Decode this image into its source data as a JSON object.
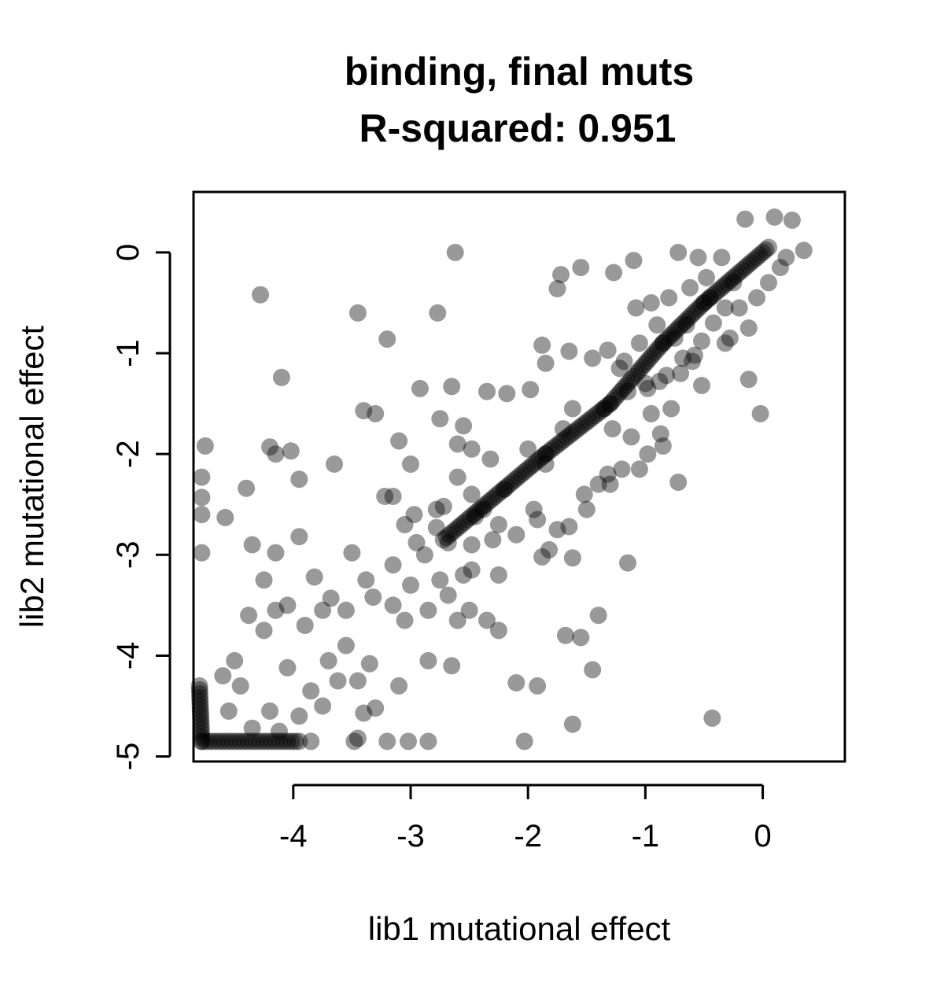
{
  "chart_data": {
    "type": "scatter",
    "title_lines": [
      "binding, final muts",
      "R-squared: 0.951"
    ],
    "xlabel": "lib1 mutational effect",
    "ylabel": "lib2 mutational effect",
    "xlim": [
      -4.85,
      0.7
    ],
    "ylim": [
      -5.05,
      0.6
    ],
    "x_ticks": [
      -4,
      -3,
      -2,
      -1,
      0
    ],
    "y_ticks": [
      -5,
      -4,
      -3,
      -2,
      -1,
      0
    ],
    "x_tick_labels": [
      "-4",
      "-3",
      "-2",
      "-1",
      "0"
    ],
    "y_tick_labels": [
      "-5",
      "-4",
      "-3",
      "-2",
      "-1",
      "0"
    ],
    "point_color": "#000000",
    "point_opacity": 0.4,
    "grid": false,
    "legend": "none",
    "points": [
      [
        -2.62,
        0.0
      ],
      [
        -4.28,
        -0.42
      ],
      [
        -4.1,
        -1.24
      ],
      [
        -3.2,
        -0.86
      ],
      [
        -3.45,
        -0.6
      ],
      [
        -2.77,
        -0.6
      ],
      [
        -4.75,
        -1.92
      ],
      [
        -4.78,
        -2.23
      ],
      [
        -4.78,
        -2.43
      ],
      [
        -4.78,
        -2.6
      ],
      [
        -4.78,
        -2.98
      ],
      [
        -4.58,
        -2.63
      ],
      [
        -4.4,
        -2.34
      ],
      [
        -4.2,
        -1.93
      ],
      [
        -4.02,
        -1.97
      ],
      [
        -3.95,
        -2.25
      ],
      [
        -4.15,
        -2.0
      ],
      [
        -3.65,
        -2.1
      ],
      [
        -3.4,
        -1.57
      ],
      [
        -3.3,
        -1.6
      ],
      [
        -3.1,
        -1.87
      ],
      [
        -3.0,
        -2.1
      ],
      [
        -2.92,
        -1.35
      ],
      [
        -2.75,
        -1.65
      ],
      [
        -2.65,
        -1.33
      ],
      [
        -2.55,
        -1.72
      ],
      [
        -2.6,
        -2.23
      ],
      [
        -2.35,
        -1.38
      ],
      [
        -2.18,
        -1.4
      ],
      [
        -1.98,
        -1.36
      ],
      [
        -1.88,
        -0.92
      ],
      [
        -1.85,
        -1.1
      ],
      [
        -1.65,
        -0.98
      ],
      [
        -1.75,
        -0.36
      ],
      [
        -1.72,
        -0.22
      ],
      [
        -1.55,
        -0.15
      ],
      [
        -1.27,
        -0.2
      ],
      [
        -1.1,
        -0.08
      ],
      [
        -0.72,
        0.0
      ],
      [
        -0.55,
        -0.05
      ],
      [
        -0.15,
        0.33
      ],
      [
        0.1,
        0.35
      ],
      [
        0.25,
        0.32
      ],
      [
        0.35,
        0.02
      ],
      [
        -0.02,
        -1.6
      ],
      [
        -0.12,
        -1.26
      ],
      [
        -0.72,
        -2.28
      ],
      [
        -0.85,
        -1.92
      ],
      [
        -1.15,
        -3.08
      ],
      [
        -1.4,
        -3.6
      ],
      [
        -1.45,
        -4.14
      ],
      [
        -1.55,
        -3.82
      ],
      [
        -1.68,
        -3.8
      ],
      [
        -1.62,
        -4.68
      ],
      [
        -1.92,
        -4.3
      ],
      [
        -2.1,
        -4.27
      ],
      [
        -2.03,
        -4.85
      ],
      [
        -2.35,
        -3.65
      ],
      [
        -2.25,
        -3.75
      ],
      [
        -2.65,
        -4.1
      ],
      [
        -2.85,
        -4.05
      ],
      [
        -2.85,
        -4.85
      ],
      [
        -3.02,
        -4.85
      ],
      [
        -3.2,
        -4.85
      ],
      [
        -3.45,
        -4.82
      ],
      [
        -3.48,
        -4.85
      ],
      [
        -3.85,
        -4.85
      ],
      [
        -0.43,
        -4.62
      ],
      [
        -2.25,
        -3.2
      ],
      [
        -2.48,
        -3.15
      ],
      [
        -1.88,
        -3.02
      ],
      [
        -1.82,
        -2.95
      ],
      [
        -1.65,
        -2.72
      ],
      [
        -1.62,
        -3.03
      ],
      [
        -1.52,
        -2.4
      ],
      [
        -1.2,
        -2.15
      ],
      [
        -1.32,
        -2.2
      ],
      [
        -1.12,
        -1.83
      ],
      [
        -0.95,
        -1.6
      ],
      [
        -0.78,
        -1.55
      ],
      [
        -0.52,
        -1.32
      ],
      [
        -0.6,
        -1.08
      ],
      [
        -0.32,
        -0.9
      ],
      [
        -0.2,
        -0.55
      ],
      [
        -0.12,
        -0.75
      ],
      [
        -3.5,
        -2.98
      ],
      [
        -3.38,
        -3.25
      ],
      [
        -3.15,
        -3.1
      ],
      [
        -2.95,
        -2.88
      ],
      [
        -3.0,
        -3.3
      ],
      [
        -2.75,
        -3.25
      ],
      [
        -2.85,
        -3.55
      ],
      [
        -2.55,
        -3.2
      ],
      [
        -2.6,
        -3.65
      ],
      [
        -3.05,
        -3.65
      ],
      [
        -3.15,
        -3.5
      ],
      [
        -3.32,
        -3.42
      ],
      [
        -3.55,
        -3.55
      ],
      [
        -3.75,
        -3.55
      ],
      [
        -3.9,
        -3.7
      ],
      [
        -3.55,
        -3.9
      ],
      [
        -3.35,
        -4.08
      ],
      [
        -3.62,
        -4.25
      ],
      [
        -3.85,
        -4.35
      ],
      [
        -3.95,
        -4.6
      ],
      [
        -4.2,
        -4.55
      ],
      [
        -4.05,
        -4.12
      ],
      [
        -4.25,
        -3.75
      ],
      [
        -4.38,
        -3.6
      ],
      [
        -4.25,
        -3.25
      ],
      [
        -4.35,
        -2.9
      ],
      [
        -3.95,
        -2.82
      ],
      [
        -4.15,
        -2.98
      ],
      [
        -4.05,
        -3.5
      ],
      [
        -4.15,
        -3.55
      ],
      [
        -3.82,
        -3.22
      ],
      [
        -3.68,
        -3.43
      ],
      [
        -4.5,
        -4.05
      ],
      [
        -4.45,
        -4.3
      ],
      [
        -4.6,
        -4.2
      ],
      [
        -4.55,
        -4.55
      ],
      [
        -4.35,
        -4.72
      ],
      [
        -4.12,
        -4.75
      ],
      [
        -3.75,
        -4.5
      ],
      [
        -3.7,
        -4.05
      ],
      [
        -3.4,
        -4.57
      ],
      [
        -3.3,
        -4.52
      ],
      [
        -3.1,
        -4.3
      ],
      [
        -3.45,
        -4.25
      ],
      [
        -2.5,
        -3.55
      ],
      [
        -2.68,
        -3.4
      ],
      [
        -2.88,
        -3.0
      ],
      [
        -3.05,
        -2.7
      ],
      [
        -3.22,
        -2.42
      ],
      [
        -3.15,
        -2.42
      ],
      [
        -2.97,
        -2.6
      ],
      [
        -2.72,
        -2.52
      ],
      [
        -2.78,
        -2.73
      ],
      [
        -2.48,
        -2.9
      ],
      [
        -2.3,
        -2.85
      ],
      [
        -2.25,
        -2.7
      ],
      [
        -2.1,
        -2.8
      ],
      [
        -1.95,
        -2.55
      ],
      [
        -1.92,
        -2.65
      ],
      [
        -1.75,
        -2.75
      ],
      [
        -1.5,
        -2.55
      ],
      [
        -1.4,
        -2.3
      ],
      [
        -1.3,
        -2.3
      ],
      [
        -1.05,
        -2.15
      ],
      [
        -0.98,
        -2.0
      ],
      [
        -0.87,
        -1.8
      ],
      [
        -0.98,
        -1.35
      ],
      [
        -1.18,
        -1.08
      ],
      [
        -1.32,
        -0.97
      ],
      [
        -1.45,
        -1.05
      ],
      [
        -1.08,
        -0.55
      ],
      [
        -0.95,
        -0.5
      ],
      [
        -0.8,
        -0.45
      ],
      [
        -0.62,
        -0.35
      ],
      [
        -0.48,
        -0.25
      ],
      [
        -0.35,
        -0.05
      ],
      [
        -0.25,
        -0.3
      ],
      [
        -0.05,
        -0.45
      ],
      [
        0.05,
        -0.3
      ],
      [
        0.15,
        -0.15
      ],
      [
        0.2,
        -0.05
      ],
      [
        -0.42,
        -0.7
      ],
      [
        -0.52,
        -0.88
      ],
      [
        -0.68,
        -1.05
      ],
      [
        -0.82,
        -1.22
      ],
      [
        -0.32,
        -0.55
      ],
      [
        -0.45,
        -0.45
      ],
      [
        -0.28,
        -0.85
      ],
      [
        -0.65,
        -0.72
      ],
      [
        -2.48,
        -2.4
      ],
      [
        -2.38,
        -2.55
      ],
      [
        -2.2,
        -2.35
      ],
      [
        -2.45,
        -2.62
      ],
      [
        -2.68,
        -2.88
      ],
      [
        -2.32,
        -2.05
      ],
      [
        -2.48,
        -1.95
      ],
      [
        -2.6,
        -1.9
      ],
      [
        -2.78,
        -2.55
      ],
      [
        -2.0,
        -1.95
      ],
      [
        -1.85,
        -2.1
      ],
      [
        -1.7,
        -1.75
      ],
      [
        -1.62,
        -1.55
      ],
      [
        -1.28,
        -1.75
      ],
      [
        -1.35,
        -1.55
      ],
      [
        -1.15,
        -1.38
      ],
      [
        -1.0,
        -1.3
      ],
      [
        -0.88,
        -1.28
      ],
      [
        -0.7,
        -1.2
      ],
      [
        -0.58,
        -1.02
      ],
      [
        -0.75,
        -0.85
      ],
      [
        -0.9,
        -0.72
      ],
      [
        -1.05,
        -0.9
      ],
      [
        -1.22,
        -1.15
      ]
    ],
    "trend_segments": [
      [
        -4.78,
        -4.85,
        -4.8,
        -4.3
      ],
      [
        -4.78,
        -4.85,
        -3.95,
        -4.85
      ],
      [
        -2.72,
        -2.85,
        -1.85,
        -2.0
      ],
      [
        -1.85,
        -2.0,
        -1.3,
        -1.5
      ],
      [
        -1.3,
        -1.5,
        -0.85,
        -0.9
      ],
      [
        -0.85,
        -0.9,
        -0.5,
        -0.5
      ],
      [
        -0.5,
        -0.5,
        0.05,
        0.05
      ]
    ]
  }
}
